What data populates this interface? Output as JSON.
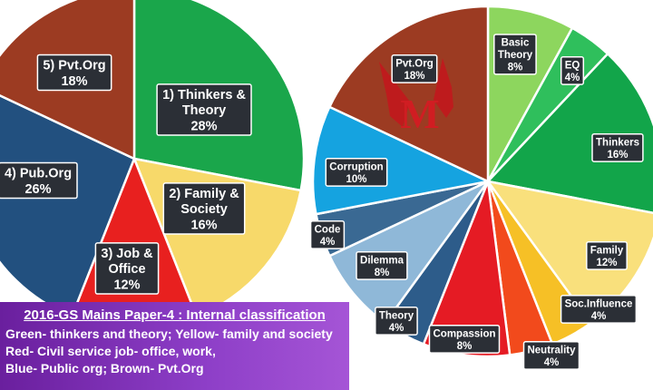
{
  "chart_data": [
    {
      "type": "pie",
      "slices": [
        {
          "label_lines": [
            "1) Thinkers &",
            "Theory"
          ],
          "value_text": "28%",
          "value": 28,
          "color": "#1aa64b"
        },
        {
          "label_lines": [
            "2) Family &",
            "Society"
          ],
          "value_text": "16%",
          "value": 16,
          "color": "#f7d96a"
        },
        {
          "label_lines": [
            "3) Job &",
            "Office"
          ],
          "value_text": "12%",
          "value": 12,
          "color": "#e8201f"
        },
        {
          "label_lines": [
            "4) Pub.Org"
          ],
          "value_text": "26%",
          "value": 26,
          "color": "#22507f"
        },
        {
          "label_lines": [
            "5) Pvt.Org"
          ],
          "value_text": "18%",
          "value": 18,
          "color": "#9c3b22"
        }
      ]
    },
    {
      "type": "pie",
      "slices": [
        {
          "label_lines": [
            "Basic",
            "Theory"
          ],
          "value_text": "8%",
          "value": 8,
          "color": "#8dd65e"
        },
        {
          "label_lines": [
            "EQ"
          ],
          "value_text": "4%",
          "value": 4,
          "color": "#2fbf5c"
        },
        {
          "label_lines": [
            "Thinkers"
          ],
          "value_text": "16%",
          "value": 16,
          "color": "#12a54a"
        },
        {
          "label_lines": [
            "Family"
          ],
          "value_text": "12%",
          "value": 12,
          "color": "#f9e07c"
        },
        {
          "label_lines": [
            "Soc.Influence"
          ],
          "value_text": "4%",
          "value": 4,
          "color": "#f6c026"
        },
        {
          "label_lines": [
            "Neutrality"
          ],
          "value_text": "4%",
          "value": 4,
          "color": "#f24a1c"
        },
        {
          "label_lines": [
            "Compassion"
          ],
          "value_text": "8%",
          "value": 8,
          "color": "#e51b24"
        },
        {
          "label_lines": [
            "Theory"
          ],
          "value_text": "4%",
          "value": 4,
          "color": "#2d5c8a"
        },
        {
          "label_lines": [
            "Dilemma"
          ],
          "value_text": "8%",
          "value": 8,
          "color": "#8fb8d8"
        },
        {
          "label_lines": [
            "Code"
          ],
          "value_text": "4%",
          "value": 4,
          "color": "#3a6993"
        },
        {
          "label_lines": [
            "Corruption"
          ],
          "value_text": "10%",
          "value": 10,
          "color": "#15a3e0"
        },
        {
          "label_lines": [
            "Pvt.Org"
          ],
          "value_text": "18%",
          "value": 18,
          "color": "#9c3b22"
        }
      ]
    }
  ],
  "legend": {
    "title": "2016-GS Mains Paper-4 : Internal classification",
    "lines": [
      "Green- thinkers and theory;  Yellow- family and society",
      "Red- Civil service job- office, work,",
      "Blue- Public org; Brown- Pvt.Org"
    ]
  },
  "logo_text": "M"
}
